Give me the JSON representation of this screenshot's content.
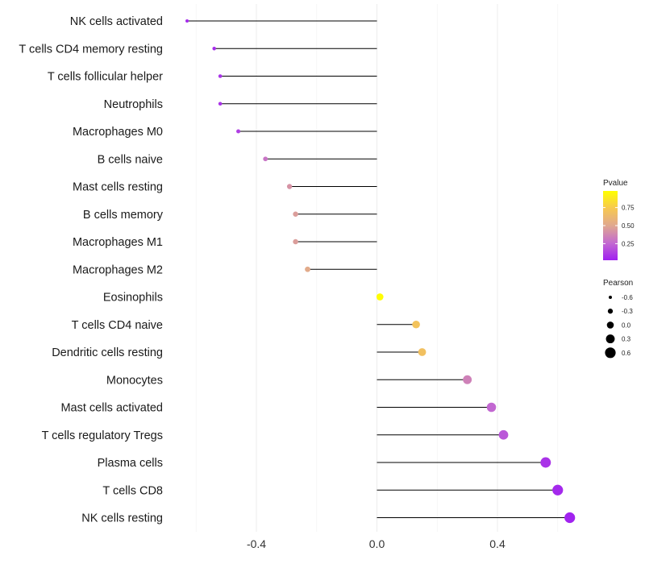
{
  "chart_data": {
    "type": "lollipop",
    "categories": [
      "NK cells activated",
      "T cells CD4 memory resting",
      "T cells follicular helper",
      "Neutrophils",
      "Macrophages M0",
      "B cells naive",
      "Mast cells resting",
      "B cells memory",
      "Macrophages M1",
      "Macrophages M2",
      "Eosinophils",
      "T cells CD4 naive",
      "Dendritic cells resting",
      "Monocytes",
      "Mast cells activated",
      "T cells regulatory  Tregs",
      "Plasma cells",
      "T cells CD8",
      "NK cells resting"
    ],
    "pearson": [
      -0.63,
      -0.54,
      -0.52,
      -0.52,
      -0.46,
      -0.37,
      -0.29,
      -0.27,
      -0.27,
      -0.23,
      0.01,
      0.13,
      0.15,
      0.3,
      0.38,
      0.42,
      0.56,
      0.6,
      0.64
    ],
    "pvalue": [
      0.05,
      0.06,
      0.08,
      0.08,
      0.12,
      0.3,
      0.42,
      0.46,
      0.46,
      0.52,
      0.97,
      0.7,
      0.68,
      0.35,
      0.25,
      0.2,
      0.08,
      0.05,
      0.03
    ],
    "xlabel": "",
    "ylabel": "",
    "xticks": [
      -0.4,
      0.0,
      0.4
    ],
    "xtick_labels": [
      "-0.4",
      "0.0",
      "0.4"
    ],
    "xlim": [
      -0.72,
      0.73
    ],
    "grid": true,
    "legend": {
      "placement": "right",
      "color": {
        "title": "Pvalue",
        "ticks": [
          0.25,
          0.5,
          0.75
        ],
        "tick_labels": [
          "0.25",
          "0.50",
          "0.75"
        ],
        "range": [
          0.02,
          0.98
        ],
        "gradient": [
          "#a020f0",
          "#c36ad0",
          "#e0a890",
          "#f7c850",
          "#ffff00"
        ]
      },
      "size": {
        "title": "Pearson",
        "values": [
          -0.6,
          -0.3,
          0.0,
          0.3,
          0.6
        ],
        "labels": [
          "-0.6",
          "-0.3",
          "0.0",
          "0.3",
          "0.6"
        ]
      }
    }
  }
}
